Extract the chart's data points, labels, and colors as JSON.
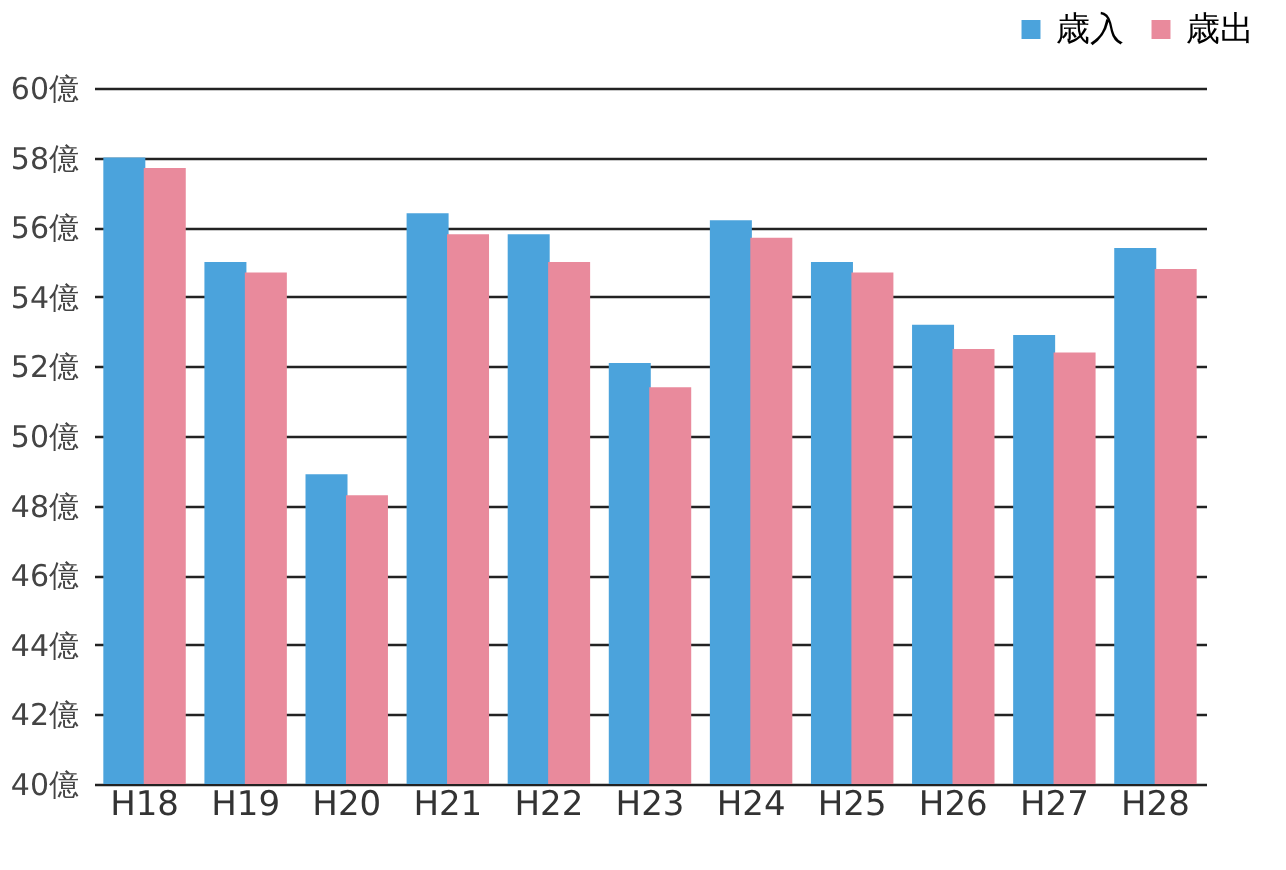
{
  "chart_data": {
    "type": "bar",
    "categories": [
      "H18",
      "H19",
      "H20",
      "H21",
      "H22",
      "H23",
      "H24",
      "H25",
      "H26",
      "H27",
      "H28"
    ],
    "series": [
      {
        "name": "歳入",
        "color": "#4ba3dc",
        "values": [
          58.0,
          55.0,
          48.9,
          56.4,
          55.8,
          52.1,
          56.2,
          55.0,
          53.2,
          52.9,
          55.4
        ]
      },
      {
        "name": "歳出",
        "color": "#e98a9c",
        "values": [
          57.7,
          54.7,
          48.3,
          55.8,
          55.0,
          51.4,
          55.7,
          54.7,
          52.5,
          52.4,
          54.8
        ]
      }
    ],
    "ylim": [
      40,
      60
    ],
    "yticks": [
      {
        "value": 40,
        "label": "40億"
      },
      {
        "value": 42,
        "label": "42億"
      },
      {
        "value": 44,
        "label": "44億"
      },
      {
        "value": 46,
        "label": "46億"
      },
      {
        "value": 48,
        "label": "48億"
      },
      {
        "value": 50,
        "label": "50億"
      },
      {
        "value": 52,
        "label": "52億"
      },
      {
        "value": 54,
        "label": "54億"
      },
      {
        "value": 56,
        "label": "56億"
      },
      {
        "value": 58,
        "label": "58億"
      },
      {
        "value": 60,
        "label": "60億"
      }
    ],
    "grid": "y",
    "legend": "top right"
  }
}
